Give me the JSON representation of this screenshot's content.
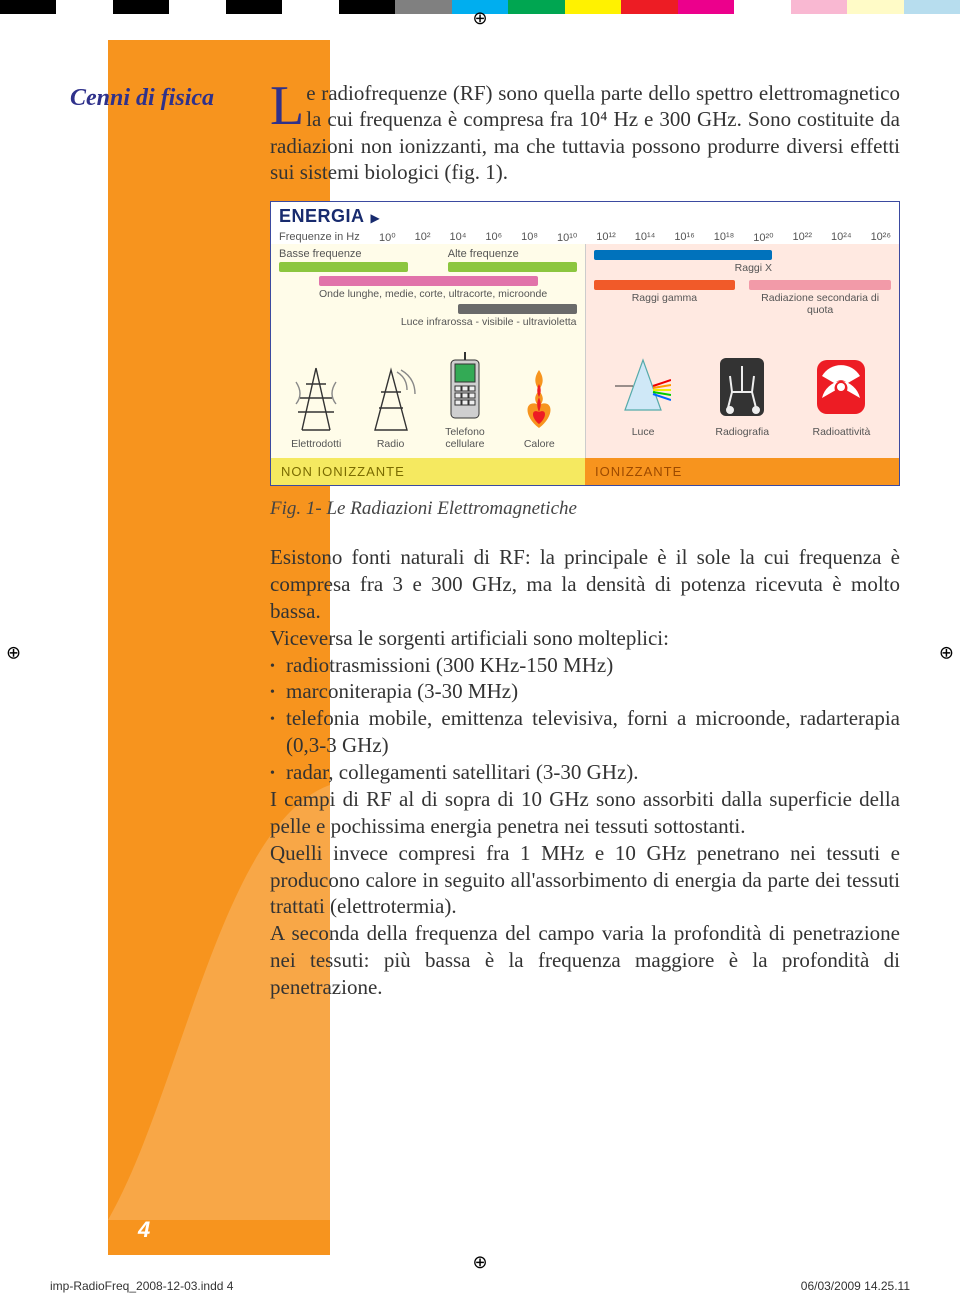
{
  "colorbar": [
    "#000000",
    "#ffffff",
    "#000000",
    "#ffffff",
    "#000000",
    "#ffffff",
    "#000000",
    "#808080",
    "#00aeef",
    "#00a651",
    "#fff200",
    "#ed1c24",
    "#ec008c",
    "#ffffff",
    "#f9b8d2",
    "#fffbc7",
    "#b7ddee"
  ],
  "section_title": "Cenni di fisica",
  "dropcap": "L",
  "intro": "e radiofrequenze (RF) sono quella parte dello spettro elettromagnetico la cui frequenza è compresa fra 10⁴ Hz e 300 GHz. Sono costituite da radiazioni non ionizzanti, ma che tuttavia possono produrre diversi effetti sui sistemi biologici (fig. 1).",
  "figure": {
    "title": "ENERGIA",
    "freq_label": "Frequenze in Hz",
    "ticks_left": [
      "10⁰",
      "10²",
      "10⁴",
      "10⁶",
      "10⁸",
      "10¹⁰",
      "10¹²",
      "10¹⁴"
    ],
    "ticks_right": [
      "10¹⁶",
      "10¹⁸",
      "10²⁰",
      "10²²",
      "10²⁴",
      "10²⁶"
    ],
    "bars": {
      "basse": {
        "label": "Basse frequenze",
        "color": "#8cc63f"
      },
      "alte": {
        "label": "Alte frequenze",
        "color": "#8cc63f"
      },
      "onde": {
        "label": "Onde lunghe, medie, corte, ultracorte, microonde",
        "color": "#e173aa"
      },
      "luce": {
        "label": "Luce infrarossa - visibile - ultravioletta",
        "color": "#6a6a6a"
      },
      "raggix": {
        "label": "Raggi X",
        "color": "#0072bc"
      },
      "gamma": {
        "label": "Raggi gamma",
        "color": "#f15a29"
      },
      "quota": {
        "label": "Radiazione secondaria di quota",
        "color": "#f29aa8"
      }
    },
    "icons_left": [
      {
        "name": "Elettrodotti"
      },
      {
        "name": "Radio"
      },
      {
        "name": "Telefono cellulare"
      },
      {
        "name": "Calore"
      }
    ],
    "icons_right": [
      {
        "name": "Luce"
      },
      {
        "name": "Radiografia"
      },
      {
        "name": "Radioattività"
      }
    ],
    "band_left": "NON IONIZZANTE",
    "band_right": "IONIZZANTE"
  },
  "caption": "Fig. 1- Le Radiazioni Elettromagnetiche",
  "para2": "Esistono fonti naturali di RF: la principale è il sole la cui frequenza è compresa fra 3 e 300 GHz, ma la densità di potenza ricevuta è molto bassa.",
  "para3": "Viceversa le sorgenti artificiali sono molteplici:",
  "bullets": [
    "radiotrasmissioni (300 KHz-150 MHz)",
    "marconiterapia (3-30 MHz)",
    "telefonia mobile, emittenza televisiva, forni a microonde, radarterapia (0,3-3 GHz)",
    "radar, collegamenti satellitari (3-30 GHz)."
  ],
  "para4": "I campi di RF al di sopra di 10 GHz sono assorbiti dalla superficie della pelle e pochissima energia penetra nei tessuti sottostanti.",
  "para5": "Quelli invece compresi fra 1 MHz e 10 GHz penetrano nei tessuti e producono calore in seguito all'assorbimento di energia da parte dei tessuti trattati (elettrotermia).",
  "para6": "A seconda della frequenza del campo varia la profondità di penetrazione nei tessuti: più bassa è la frequenza maggiore è la profondità di penetrazione.",
  "page_number": "4",
  "footer_file": "imp-RadioFreq_2008-12-03.indd   4",
  "footer_time": "06/03/2009   14.25.11"
}
